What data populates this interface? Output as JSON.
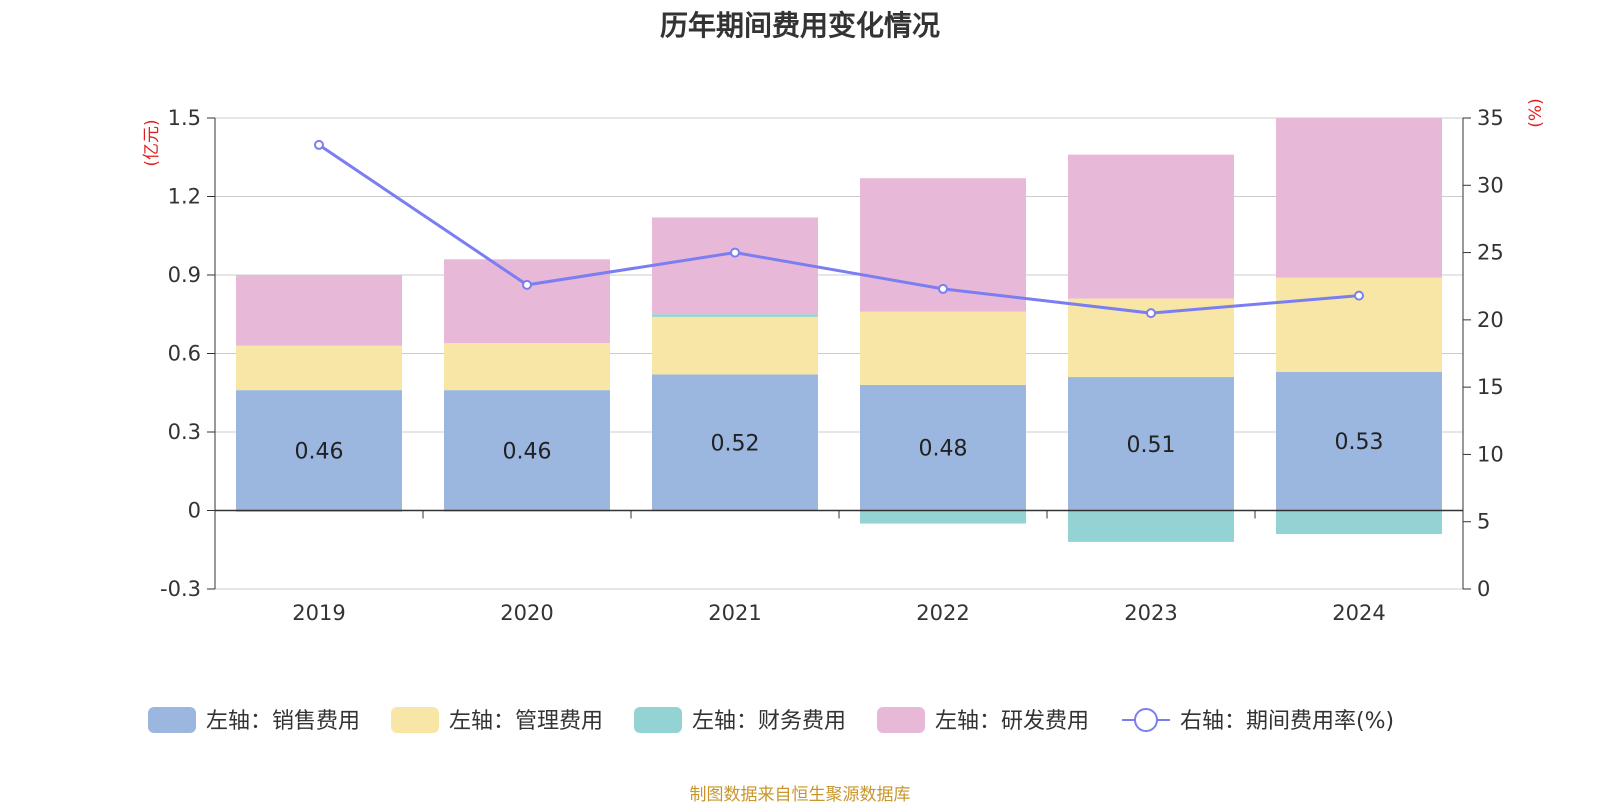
{
  "title": "历年期间费用变化情况",
  "source_note": "制图数据来自恒生聚源数据库",
  "chart_data": {
    "type": "bar",
    "stacked": true,
    "categories": [
      "2019",
      "2020",
      "2021",
      "2022",
      "2023",
      "2024"
    ],
    "left_axis": {
      "unit": "(亿元)",
      "ylim": [
        -0.3,
        1.5
      ],
      "ticks": [
        -0.3,
        0,
        0.3,
        0.6,
        0.9,
        1.2,
        1.5
      ],
      "tick_labels": [
        "-0.3",
        "0",
        "0.3",
        "0.6",
        "0.9",
        "1.2",
        "1.5"
      ]
    },
    "right_axis": {
      "unit": "(%)",
      "ylim": [
        0,
        35
      ],
      "ticks": [
        0,
        5,
        10,
        15,
        20,
        25,
        30,
        35
      ],
      "tick_labels": [
        "0",
        "5",
        "10",
        "15",
        "20",
        "25",
        "30",
        "35"
      ]
    },
    "series": [
      {
        "name": "左轴：销售费用",
        "color": "#9bb7e0",
        "axis": "left",
        "values": [
          0.46,
          0.46,
          0.52,
          0.48,
          0.51,
          0.53
        ],
        "data_labels": [
          "0.46",
          "0.46",
          "0.52",
          "0.48",
          "0.51",
          "0.53"
        ]
      },
      {
        "name": "左轴：管理费用",
        "color": "#f8e6a6",
        "axis": "left",
        "values": [
          0.17,
          0.18,
          0.22,
          0.28,
          0.3,
          0.36
        ]
      },
      {
        "name": "左轴：财务费用",
        "color": "#93d3d3",
        "axis": "left",
        "values": [
          -0.005,
          -0.002,
          0.01,
          -0.05,
          -0.12,
          -0.09
        ]
      },
      {
        "name": "左轴：研发费用",
        "color": "#e8b8d8",
        "axis": "left",
        "values": [
          0.27,
          0.32,
          0.37,
          0.51,
          0.55,
          0.61
        ]
      },
      {
        "name": "右轴：期间费用率(%)",
        "color": "#7b7ef0",
        "axis": "right",
        "type": "line",
        "values": [
          33.0,
          22.6,
          25.0,
          22.3,
          20.5,
          21.8
        ]
      }
    ],
    "grid": true,
    "legend_position": "bottom"
  }
}
